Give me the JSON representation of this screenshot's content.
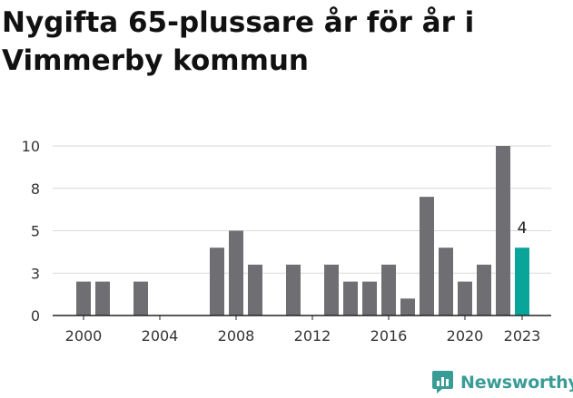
{
  "title": "Nygifta 65-plussare år för år i Vimmerby kommun",
  "brand": {
    "name": "Newsworthy",
    "color": "#3a9c96",
    "icon": "newsworthy-logo-icon"
  },
  "colors": {
    "bar": "#6f6e72",
    "highlight": "#0aa59a",
    "grid": "#d9d9d9",
    "axis": "#222222",
    "text": "#333333"
  },
  "chart_data": {
    "type": "bar",
    "x": [
      2000,
      2001,
      2002,
      2003,
      2004,
      2005,
      2006,
      2007,
      2008,
      2009,
      2010,
      2011,
      2012,
      2013,
      2014,
      2015,
      2016,
      2017,
      2018,
      2019,
      2020,
      2021,
      2022,
      2023
    ],
    "values": [
      2,
      2,
      0,
      2,
      0,
      0,
      0,
      4,
      5,
      3,
      0,
      3,
      0,
      3,
      2,
      2,
      3,
      1,
      7,
      4,
      2,
      3,
      10,
      4
    ],
    "highlight_index": 23,
    "highlight_label": "4",
    "xticks": [
      "2000",
      "2004",
      "2008",
      "2012",
      "2016",
      "2020",
      "2023"
    ],
    "xtick_years": [
      2000,
      2004,
      2008,
      2012,
      2016,
      2020,
      2023
    ],
    "yticks": [
      "0",
      "3",
      "5",
      "8",
      "10"
    ],
    "ytick_values": [
      0,
      2.5,
      5,
      7.5,
      10
    ],
    "ylim": [
      0,
      10
    ],
    "grid": true,
    "xlabel": "",
    "ylabel": ""
  }
}
